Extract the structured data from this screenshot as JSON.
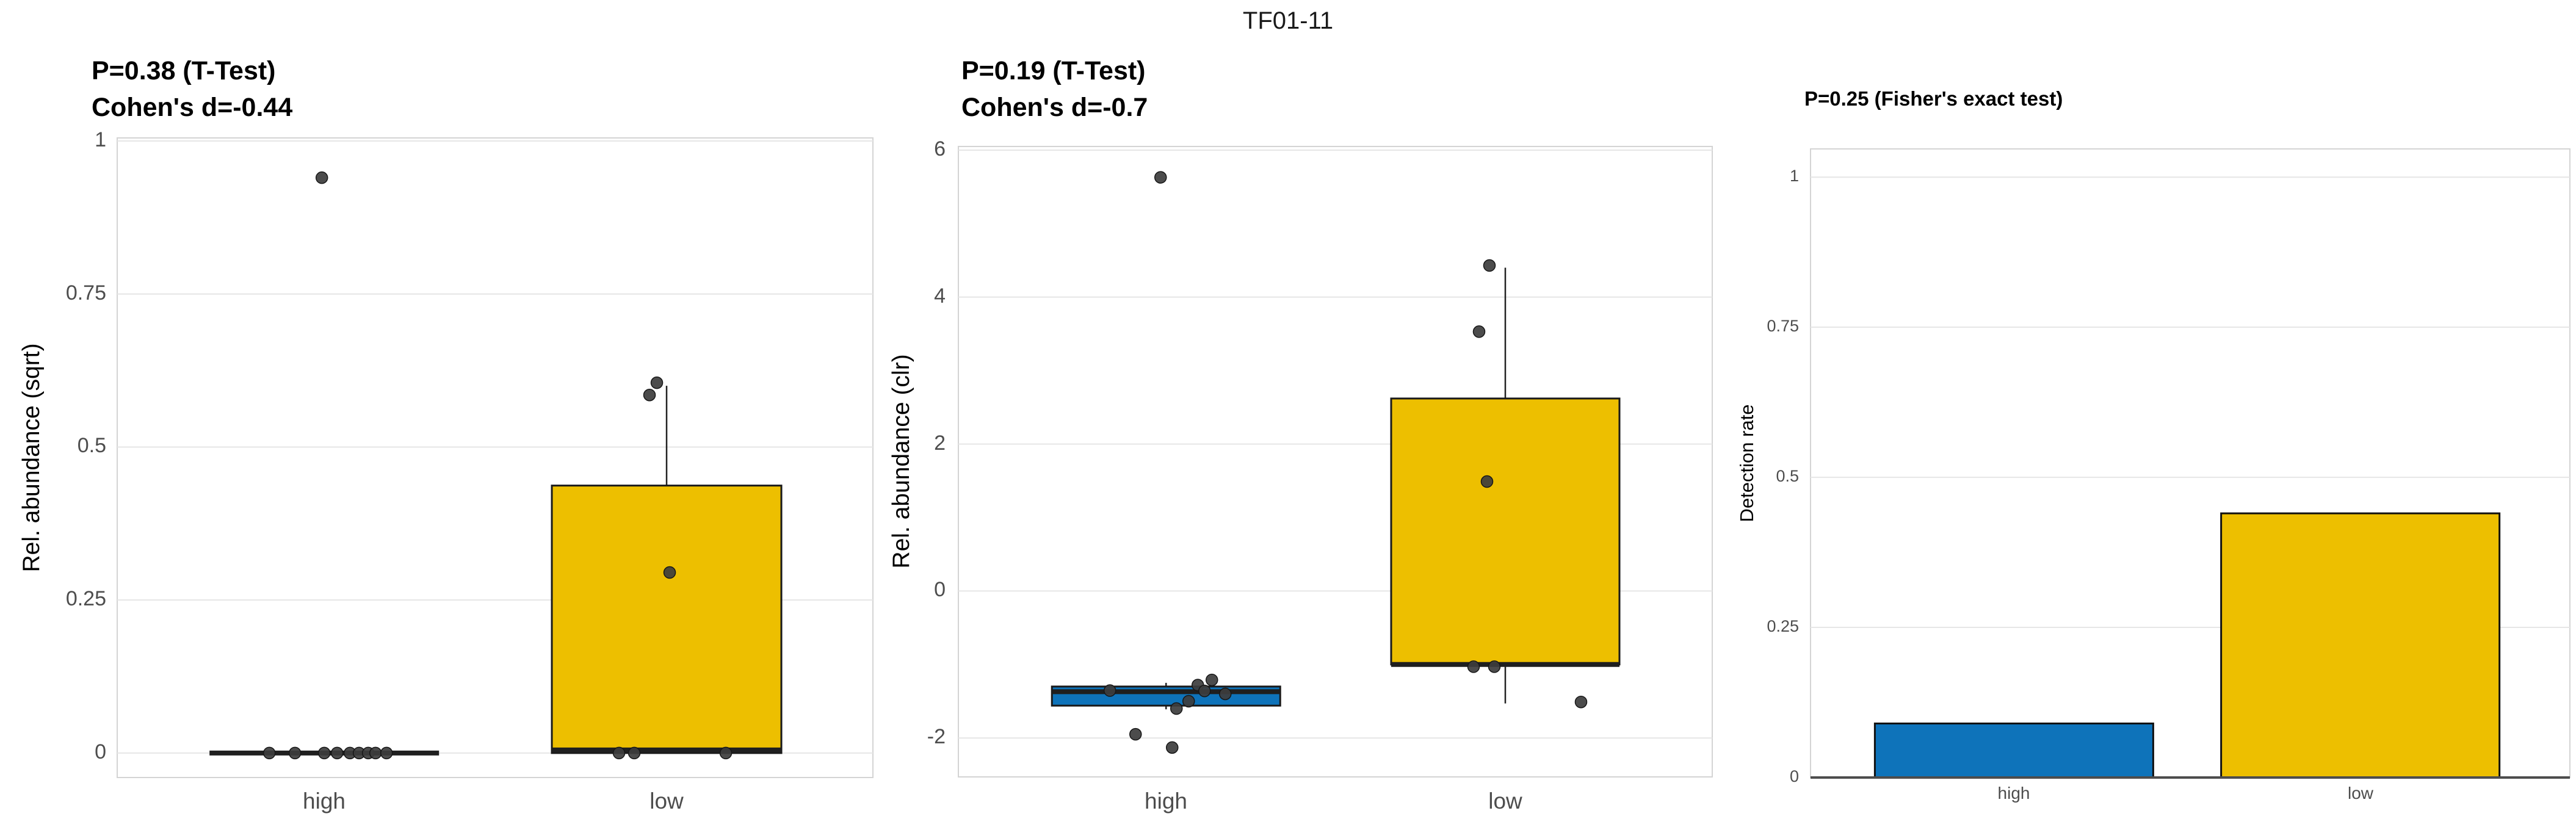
{
  "figure": {
    "title": "TF01-11"
  },
  "chart_data": [
    {
      "type": "boxplot",
      "title_lines": [
        "P=0.38 (T-Test)",
        "Cohen's d=-0.44"
      ],
      "ylabel": "Rel. abundance (sqrt)",
      "categories": [
        "high",
        "low"
      ],
      "ylim": [
        -0.04,
        1.005
      ],
      "yticks": [
        0,
        0.25,
        0.5,
        0.75,
        1
      ],
      "ytick_labels": [
        "0",
        "0.25",
        "0.5",
        "0.75",
        "1"
      ],
      "grid": true,
      "legend": "none",
      "groups": [
        {
          "name": "high",
          "color": "#0E73BA",
          "box": {
            "q1": 0,
            "median": 0,
            "q3": 0,
            "whisker_low": 0,
            "whisker_high": 0
          },
          "points": [
            {
              "v": 0.94,
              "dx": -4
            },
            {
              "v": 0,
              "dx": -90
            },
            {
              "v": 0,
              "dx": -48
            },
            {
              "v": 0,
              "dx": 0
            },
            {
              "v": 0,
              "dx": 21
            },
            {
              "v": 0,
              "dx": 42
            },
            {
              "v": 0,
              "dx": 57
            },
            {
              "v": 0,
              "dx": 72
            },
            {
              "v": 0,
              "dx": 84
            },
            {
              "v": 0,
              "dx": 102
            }
          ]
        },
        {
          "name": "low",
          "color": "#EDBF00",
          "box": {
            "q1": 0,
            "median": 0.005,
            "q3": 0.437,
            "whisker_low": 0,
            "whisker_high": 0.6
          },
          "points": [
            {
              "v": 0.585,
              "dx": -28
            },
            {
              "v": 0.605,
              "dx": -16
            },
            {
              "v": 0.295,
              "dx": 5
            },
            {
              "v": 0,
              "dx": -78
            },
            {
              "v": 0,
              "dx": -53
            },
            {
              "v": 0,
              "dx": 97
            }
          ]
        }
      ]
    },
    {
      "type": "boxplot",
      "title_lines": [
        "P=0.19 (T-Test)",
        "Cohen's d=-0.7"
      ],
      "ylabel": "Rel. abundance (clr)",
      "categories": [
        "high",
        "low"
      ],
      "ylim": [
        -2.53,
        6.05
      ],
      "yticks": [
        -2,
        0,
        2,
        4,
        6
      ],
      "ytick_labels": [
        "-2",
        "0",
        "2",
        "4",
        "6"
      ],
      "grid": true,
      "legend": "none",
      "groups": [
        {
          "name": "high",
          "color": "#0E73BA",
          "box": {
            "q1": -1.56,
            "median": -1.37,
            "q3": -1.3,
            "whisker_low": -1.61,
            "whisker_high": -1.25
          },
          "points": [
            {
              "v": 5.63,
              "dx": -9
            },
            {
              "v": -1.355,
              "dx": -92
            },
            {
              "v": -1.28,
              "dx": 52
            },
            {
              "v": -1.21,
              "dx": 75
            },
            {
              "v": -1.36,
              "dx": 63
            },
            {
              "v": -1.4,
              "dx": 97
            },
            {
              "v": -1.5,
              "dx": 37
            },
            {
              "v": -1.6,
              "dx": 17
            },
            {
              "v": -1.95,
              "dx": -50
            },
            {
              "v": -2.13,
              "dx": 10
            }
          ]
        },
        {
          "name": "low",
          "color": "#EDBF00",
          "box": {
            "q1": -1.0,
            "median": -1.0,
            "q3": 2.62,
            "whisker_low": -1.53,
            "whisker_high": 4.4
          },
          "points": [
            {
              "v": 4.43,
              "dx": -26
            },
            {
              "v": 3.53,
              "dx": -43
            },
            {
              "v": 1.49,
              "dx": -30
            },
            {
              "v": -1.03,
              "dx": -52
            },
            {
              "v": -1.03,
              "dx": -18
            },
            {
              "v": -1.51,
              "dx": 124
            }
          ]
        }
      ]
    },
    {
      "type": "bar",
      "title_lines": [
        "P=0.25 (Fisher's exact test)"
      ],
      "ylabel": "Detection rate",
      "categories": [
        "high",
        "low"
      ],
      "values": [
        0.09,
        0.44
      ],
      "colors": [
        "#0E73BA",
        "#EDBF00"
      ],
      "ylim": [
        0,
        1.047
      ],
      "yticks": [
        0,
        0.25,
        0.5,
        0.75,
        1
      ],
      "ytick_labels": [
        "0",
        "0.25",
        "0.5",
        "0.75",
        "1"
      ],
      "grid": true,
      "legend": "none"
    }
  ],
  "style": {
    "point_color": "#3d3d3d",
    "point_stroke": "#161616",
    "line_color": "#222222",
    "grid_color": "#e6e6e6",
    "panel_border": "#d4d4d4",
    "axis_line_color": "#4d4d4d",
    "tick_text_color": "#4d4d4d"
  }
}
